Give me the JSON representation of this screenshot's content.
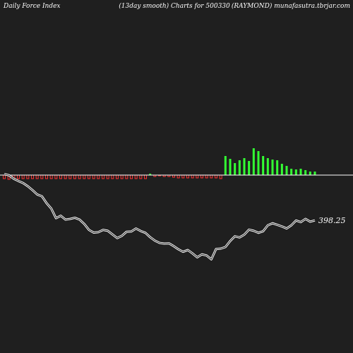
{
  "header": {
    "left": "Daily Force  Index",
    "center": "(13day smooth) Charts for 500330",
    "right": "(RAYMOND) munafasutra.tbrjar.com"
  },
  "colors": {
    "background": "#1f1f1f",
    "positive_bar": "#33ff33",
    "negative_bar": "#ff3333",
    "zero_line": "#ffffff",
    "price_line": "#ffffff"
  },
  "chart_data": {
    "type": "bar",
    "series": [
      {
        "values": [
          -0.05,
          -0.06,
          -0.05,
          -0.05,
          -0.05,
          -0.05,
          -0.05,
          -0.05,
          -0.05,
          -0.05,
          -0.05,
          -0.05,
          -0.05,
          -0.05,
          -0.05,
          -0.05,
          -0.05,
          -0.05,
          -0.05,
          -0.05,
          -0.05,
          -0.05,
          -0.05,
          -0.05,
          -0.05,
          -0.05,
          -0.05,
          -0.05,
          -0.05,
          -0.05,
          -0.05,
          0.02,
          -0.02,
          -0.01,
          -0.02,
          -0.02,
          -0.03,
          -0.04,
          -0.04,
          -0.04,
          -0.04,
          -0.04,
          -0.04,
          -0.04,
          -0.04,
          -0.04,
          -0.05,
          0.27,
          0.23,
          0.17,
          0.21,
          0.24,
          0.2,
          0.38,
          0.34,
          0.27,
          0.24,
          0.22,
          0.21,
          0.16,
          0.13,
          0.09,
          0.08,
          0.09,
          0.07,
          0.05,
          0.05
        ]
      },
      {
        "values": [
          418.5,
          418,
          416.5,
          415.5,
          414.6,
          413.2,
          411.5,
          409.6,
          408.8,
          405.8,
          403.4,
          399.2,
          400.3,
          398.6,
          398.9,
          399.4,
          398.6,
          396.7,
          394.1,
          392.9,
          393.1,
          394.1,
          393.7,
          392.1,
          390.5,
          391.5,
          393.3,
          393.4,
          394.7,
          393.6,
          392.8,
          390.9,
          389.4,
          388.4,
          388.1,
          388.2,
          387.0,
          385.6,
          384.5,
          385.3,
          383.8,
          382.1,
          383.4,
          382.9,
          381.2,
          385.7,
          385.9,
          386.6,
          389.2,
          391.3,
          390.8,
          392.0,
          394.2,
          393.7,
          392.8,
          393.5,
          396.1,
          397.0,
          396.3,
          395.6,
          394.7,
          396.1,
          398.2,
          397.5,
          398.9,
          397.7,
          398.25
        ]
      }
    ],
    "last_price_label": "398.25"
  }
}
